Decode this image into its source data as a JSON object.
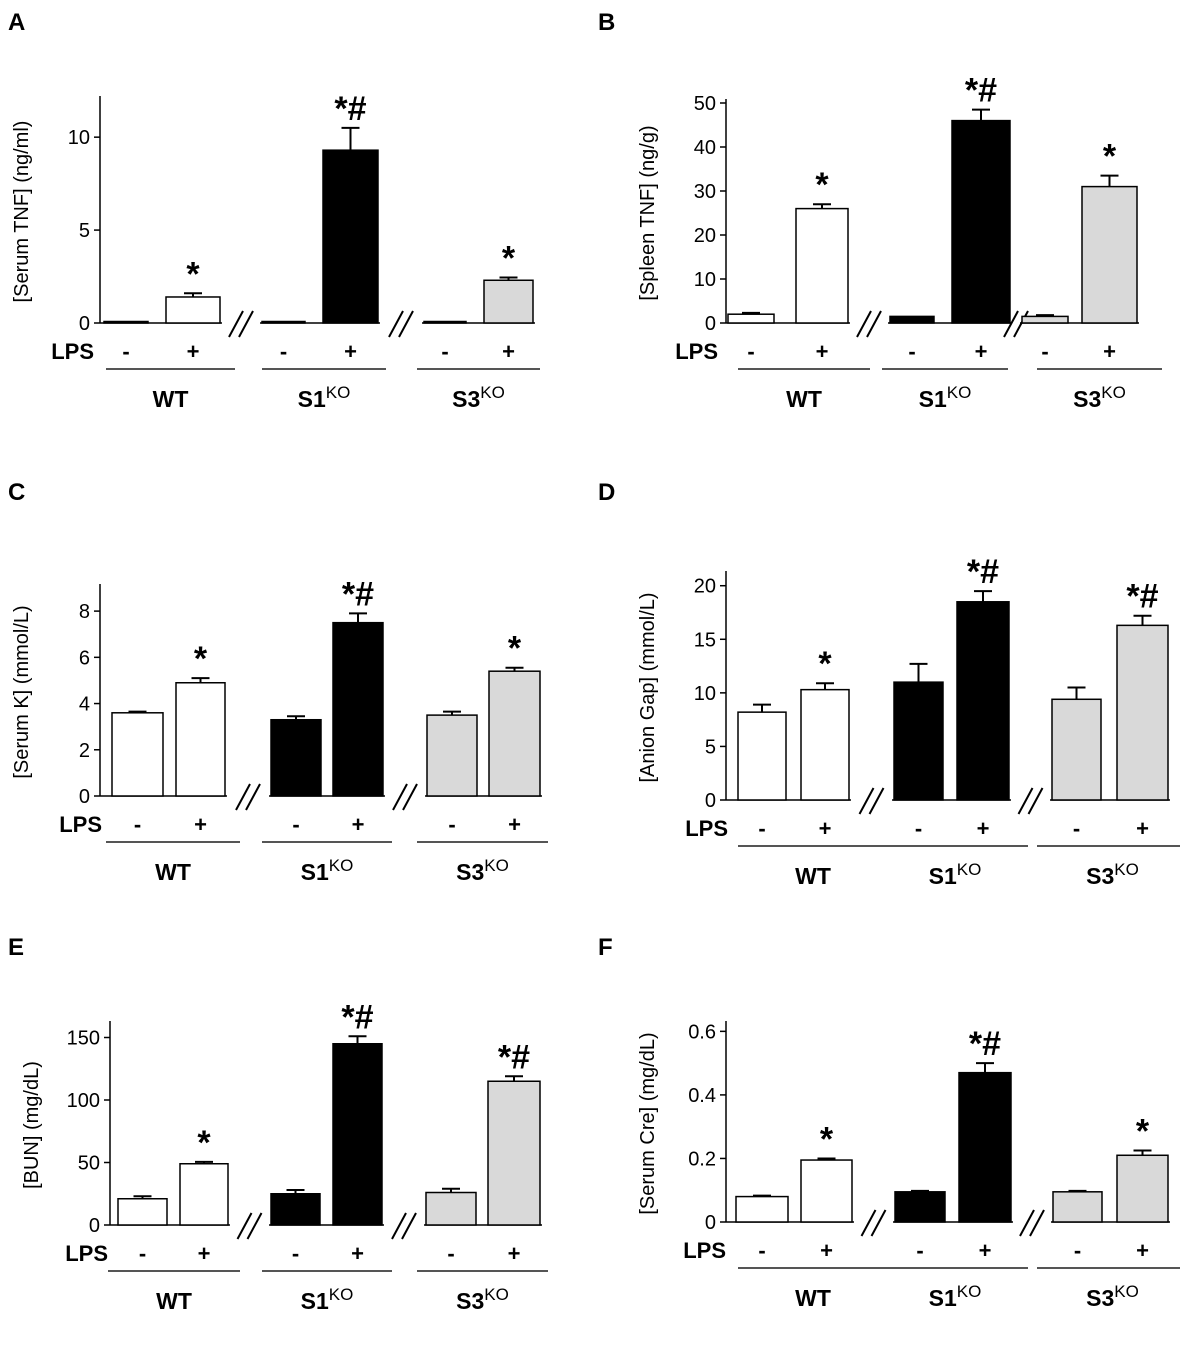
{
  "lps_label": "LPS",
  "treatment_labels": [
    "-",
    "+"
  ],
  "groups": [
    {
      "name": "WT",
      "sup": ""
    },
    {
      "name": "S1",
      "sup": "KO"
    },
    {
      "name": "S3",
      "sup": "KO"
    }
  ],
  "colors": {
    "WT": "#ffffff",
    "S1KO": "#000000",
    "S3KO": "#d9d9d9",
    "axis": "#000000"
  },
  "chart_data": [
    {
      "panel": "A",
      "type": "bar",
      "ylabel": "[Serum TNF]  (ng/ml)",
      "ylim": [
        0,
        12
      ],
      "yticks": [
        0,
        5,
        10
      ],
      "categories": [
        "WT -",
        "WT +",
        "S1KO -",
        "S1KO +",
        "S3KO -",
        "S3KO +"
      ],
      "values": [
        0.05,
        1.4,
        0.05,
        9.3,
        0.05,
        2.3
      ],
      "errors": [
        0,
        0.2,
        0,
        1.2,
        0,
        0.15
      ],
      "annotations": [
        "",
        "*",
        "",
        "*#",
        "",
        "*"
      ],
      "axis_breaks": true
    },
    {
      "panel": "B",
      "type": "bar",
      "ylabel": "[Spleen TNF]  (ng/g)",
      "ylim": [
        0,
        50
      ],
      "yticks": [
        0,
        10,
        20,
        30,
        40,
        50
      ],
      "categories": [
        "WT -",
        "WT +",
        "S1KO -",
        "S1KO +",
        "S3KO -",
        "S3KO +"
      ],
      "values": [
        2,
        26,
        1.5,
        46,
        1.5,
        31
      ],
      "errors": [
        0.3,
        1,
        0,
        2.5,
        0.3,
        2.5
      ],
      "annotations": [
        "",
        "*",
        "",
        "*#",
        "",
        "*"
      ],
      "axis_breaks": true
    },
    {
      "panel": "C",
      "type": "bar",
      "ylabel": "[Serum K]  (mmol/L)",
      "ylim": [
        0,
        9
      ],
      "yticks": [
        0,
        2,
        4,
        6,
        8
      ],
      "categories": [
        "WT -",
        "WT +",
        "S1KO -",
        "S1KO +",
        "S3KO -",
        "S3KO +"
      ],
      "values": [
        3.6,
        4.9,
        3.3,
        7.5,
        3.5,
        5.4
      ],
      "errors": [
        0.05,
        0.2,
        0.15,
        0.4,
        0.15,
        0.15
      ],
      "annotations": [
        "",
        "*",
        "",
        "*#",
        "",
        "*"
      ],
      "axis_breaks": true
    },
    {
      "panel": "D",
      "type": "bar",
      "ylabel": "[Anion Gap]  (mmol/L)",
      "ylim": [
        0,
        21
      ],
      "yticks": [
        0,
        5,
        10,
        15,
        20
      ],
      "categories": [
        "WT -",
        "WT +",
        "S1KO -",
        "S1KO +",
        "S3KO -",
        "S3KO +"
      ],
      "values": [
        8.2,
        10.3,
        11,
        18.5,
        9.4,
        16.3
      ],
      "errors": [
        0.7,
        0.6,
        1.7,
        1,
        1.1,
        0.9
      ],
      "annotations": [
        "",
        "*",
        "",
        "*#",
        "",
        "*#"
      ],
      "axis_breaks": true
    },
    {
      "panel": "E",
      "type": "bar",
      "ylabel": "[BUN]  (mg/dL)",
      "ylim": [
        0,
        160
      ],
      "yticks": [
        0,
        50,
        100,
        150
      ],
      "categories": [
        "WT -",
        "WT +",
        "S1KO -",
        "S1KO +",
        "S3KO -",
        "S3KO +"
      ],
      "values": [
        21,
        49,
        25,
        145,
        26,
        115
      ],
      "errors": [
        2,
        1.5,
        3,
        6,
        3,
        4
      ],
      "annotations": [
        "",
        "*",
        "",
        "*#",
        "",
        "*#"
      ],
      "axis_breaks": true
    },
    {
      "panel": "F",
      "type": "bar",
      "ylabel": "[Serum Cre]  (mg/dL)",
      "ylim": [
        0,
        0.62
      ],
      "yticks": [
        0,
        0.2,
        0.4,
        0.6
      ],
      "categories": [
        "WT -",
        "WT +",
        "S1KO -",
        "S1KO +",
        "S3KO -",
        "S3KO +"
      ],
      "values": [
        0.08,
        0.195,
        0.095,
        0.47,
        0.095,
        0.21
      ],
      "errors": [
        0.003,
        0.005,
        0.003,
        0.03,
        0.003,
        0.015
      ],
      "annotations": [
        "",
        "*",
        "",
        "*#",
        "",
        "*"
      ],
      "axis_breaks": true
    }
  ]
}
